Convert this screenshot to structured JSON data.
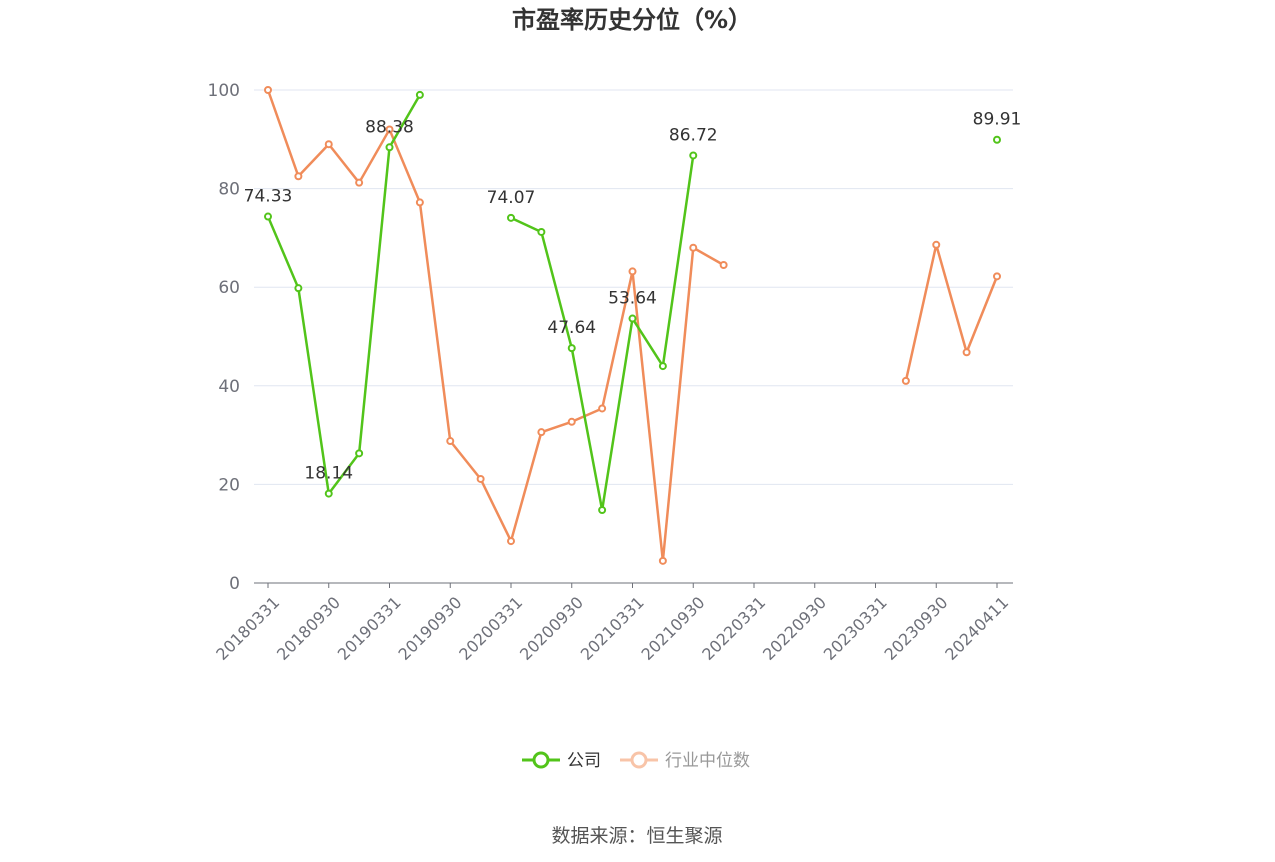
{
  "chart_data": {
    "type": "line",
    "title": "市盈率历史分位（%）",
    "source": "数据来源：恒生聚源",
    "ylim": [
      0,
      100
    ],
    "yticks": [
      0,
      20,
      40,
      60,
      80,
      100
    ],
    "grid": true,
    "legend_position": "bottom",
    "x_tick_labels": [
      "20180331",
      "20180930",
      "20190331",
      "20190930",
      "20200331",
      "20200930",
      "20210331",
      "20210930",
      "20220331",
      "20220930",
      "20230331",
      "20230930",
      "20240411"
    ],
    "x": [
      "20180331",
      "20180630",
      "20180930",
      "20181231",
      "20190331",
      "20190630",
      "20190930",
      "20191231",
      "20200331",
      "20200630",
      "20200930",
      "20201231",
      "20210331",
      "20210630",
      "20210930",
      "20211231",
      "20220331",
      "20220630",
      "20220930",
      "20221231",
      "20230331",
      "20230630",
      "20230930",
      "20231231",
      "20240411"
    ],
    "series": [
      {
        "name": "公司",
        "color": "#52c41a",
        "values": [
          74.33,
          59.8,
          18.14,
          26.3,
          88.38,
          99.0,
          null,
          null,
          74.07,
          71.2,
          47.64,
          14.8,
          53.64,
          44.0,
          86.72,
          null,
          null,
          null,
          null,
          null,
          null,
          null,
          null,
          null,
          89.91
        ],
        "labels": [
          "74.33",
          null,
          "18.14",
          null,
          "88.38",
          null,
          null,
          null,
          "74.07",
          null,
          "47.64",
          null,
          "53.64",
          null,
          "86.72",
          null,
          null,
          null,
          null,
          null,
          null,
          null,
          null,
          null,
          "89.91"
        ]
      },
      {
        "name": "行业中位数",
        "color": "#f08c5a",
        "values": [
          100,
          82.5,
          89.0,
          81.2,
          92.0,
          77.2,
          28.8,
          21.1,
          8.5,
          30.6,
          32.7,
          35.4,
          63.2,
          4.5,
          68.0,
          64.5,
          null,
          null,
          null,
          null,
          null,
          41.0,
          68.6,
          46.8,
          62.2
        ]
      }
    ]
  }
}
